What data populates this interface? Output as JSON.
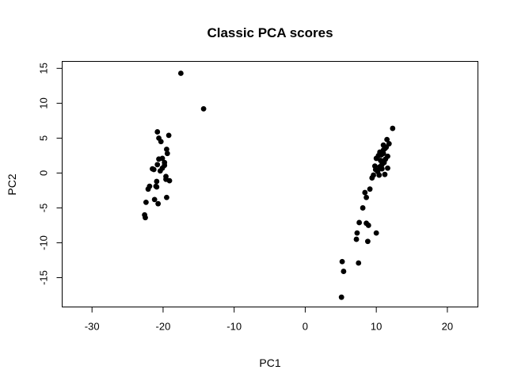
{
  "chart_data": {
    "type": "scatter",
    "title": "Classic PCA scores",
    "xlabel": "PC1",
    "ylabel": "PC2",
    "xlim": [
      -34.2,
      24.3
    ],
    "ylim": [
      -19.2,
      16.0
    ],
    "xticks": [
      -30,
      -20,
      -10,
      0,
      10,
      20
    ],
    "yticks": [
      -15,
      -10,
      -5,
      0,
      5,
      10,
      15
    ],
    "grid": false,
    "point_color": "#000000",
    "series": [
      {
        "x": [
          -17.5,
          -14.3,
          -20.8,
          -20.6,
          -20.3,
          -19.2,
          -19.5,
          -19.4,
          -20.1,
          -19.8,
          -20.8,
          -20.6,
          -21.3,
          -21.5,
          -20.4,
          -20.1,
          -19.8,
          -19.6,
          -20.9,
          -21.0,
          -21.9,
          -22.1,
          -19.6,
          -19.1,
          -20.9,
          -19.5,
          -21.2,
          -20.7,
          -22.4,
          -22.6,
          -22.5,
          12.3,
          11.5,
          11.0,
          11.8,
          11.2,
          10.5,
          11.0,
          10.3,
          10.0,
          11.6,
          10.6,
          9.8,
          10.1,
          10.8,
          11.1,
          10.5,
          10.2,
          9.4,
          9.6,
          9.1,
          8.4,
          8.6,
          8.1,
          7.6,
          7.3,
          8.6,
          8.9,
          10.0,
          7.2,
          8.8,
          5.2,
          5.4,
          7.5,
          5.1,
          11.4,
          11.0,
          10.7,
          11.3,
          10.9,
          11.6,
          9.9,
          10.4,
          11.2,
          10.8
        ],
        "y": [
          14.3,
          9.2,
          5.9,
          5.0,
          4.5,
          5.4,
          3.4,
          2.8,
          2.1,
          1.5,
          1.2,
          2.0,
          0.5,
          0.6,
          0.3,
          0.7,
          1.1,
          -0.5,
          -1.2,
          -1.9,
          -1.9,
          -2.3,
          -0.9,
          -1.1,
          -2.0,
          -3.5,
          -3.8,
          -4.4,
          -4.2,
          -6.0,
          -6.4,
          6.4,
          4.8,
          4.0,
          4.2,
          3.5,
          3.0,
          2.8,
          2.5,
          2.1,
          2.4,
          1.8,
          1.0,
          0.4,
          0.6,
          1.5,
          0.9,
          0.2,
          -0.7,
          -0.3,
          -2.3,
          -2.8,
          -3.5,
          -5.0,
          -7.1,
          -8.6,
          -7.2,
          -7.5,
          -8.6,
          -9.5,
          -9.8,
          -12.7,
          -14.1,
          -12.9,
          -17.8,
          3.7,
          3.3,
          2.6,
          2.0,
          1.7,
          0.7,
          0.5,
          -0.3,
          -0.2,
          1.2
        ]
      }
    ]
  }
}
